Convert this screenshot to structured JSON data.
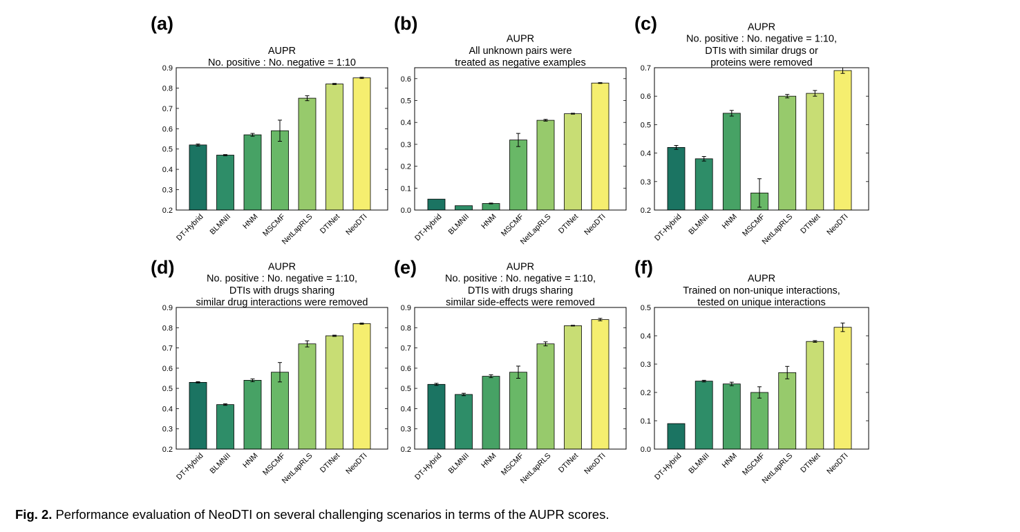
{
  "figure": {
    "caption_label": "Fig. 2.",
    "caption_text": "Performance evaluation of NeoDTI on several challenging scenarios in terms of the AUPR scores."
  },
  "style": {
    "background": "#ffffff",
    "axis_color": "#000000",
    "bar_edge_color": "#000000",
    "bar_colors": [
      "#1b7462",
      "#2e8d68",
      "#47a265",
      "#69b867",
      "#97ca6c",
      "#c8dd74",
      "#f5ee6f"
    ]
  },
  "chart_data": [
    {
      "panel_label": "(a)",
      "type": "bar",
      "title": [
        "AUPR",
        "No. positive : No. negative = 1:10"
      ],
      "xlabel": "",
      "ylabel": "",
      "categories": [
        "DT-Hybrid",
        "BLMNII",
        "HNM",
        "MSCMF",
        "NetLapRLS",
        "DTINet",
        "NeoDTI"
      ],
      "values": [
        0.52,
        0.47,
        0.57,
        0.59,
        0.75,
        0.82,
        0.85
      ],
      "errors": [
        0.005,
        0.003,
        0.007,
        0.052,
        0.012,
        0.003,
        0.003
      ],
      "ylim": [
        0.2,
        0.9
      ],
      "ytick_labels": [
        "0.2",
        "0.3",
        "0.4",
        "0.5",
        "0.6",
        "0.7",
        "0.8",
        "0.9"
      ],
      "grid": false
    },
    {
      "panel_label": "(b)",
      "type": "bar",
      "title": [
        "AUPR",
        "All unknown pairs were",
        "treated as negative examples"
      ],
      "xlabel": "",
      "ylabel": "",
      "categories": [
        "DT-Hybrid",
        "BLMNII",
        "HNM",
        "MSCMF",
        "NetLapRLS",
        "DTINet",
        "NeoDTI"
      ],
      "values": [
        0.05,
        0.02,
        0.03,
        0.32,
        0.41,
        0.44,
        0.58
      ],
      "errors": [
        0.0,
        0.001,
        0.002,
        0.03,
        0.004,
        0.002,
        0.002
      ],
      "ylim": [
        0.0,
        0.65
      ],
      "ytick_labels": [
        "0.0",
        "0.1",
        "0.2",
        "0.3",
        "0.4",
        "0.5",
        "0.6"
      ],
      "grid": false
    },
    {
      "panel_label": "(c)",
      "type": "bar",
      "title": [
        "AUPR",
        "No. positive : No. negative = 1:10,",
        "DTIs with similar drugs or",
        "proteins were removed"
      ],
      "xlabel": "",
      "ylabel": "",
      "categories": [
        "DT-Hybrid",
        "BLMNII",
        "HNM",
        "MSCMF",
        "NetLapRLS",
        "DTINet",
        "NeoDTI"
      ],
      "values": [
        0.42,
        0.38,
        0.54,
        0.26,
        0.6,
        0.61,
        0.69
      ],
      "errors": [
        0.007,
        0.008,
        0.01,
        0.05,
        0.006,
        0.01,
        0.01
      ],
      "ylim": [
        0.2,
        0.7
      ],
      "ytick_labels": [
        "0.2",
        "0.3",
        "0.4",
        "0.5",
        "0.6",
        "0.7"
      ],
      "grid": false
    },
    {
      "panel_label": "(d)",
      "type": "bar",
      "title": [
        "AUPR",
        "No. positive : No. negative = 1:10,",
        "DTIs with drugs sharing",
        "similar drug interactions were removed"
      ],
      "xlabel": "",
      "ylabel": "",
      "categories": [
        "DT-Hybrid",
        "BLMNII",
        "HNM",
        "MSCMF",
        "NetLapRLS",
        "DTINet",
        "NeoDTI"
      ],
      "values": [
        0.53,
        0.42,
        0.54,
        0.58,
        0.72,
        0.76,
        0.82
      ],
      "errors": [
        0.003,
        0.004,
        0.007,
        0.048,
        0.015,
        0.003,
        0.003
      ],
      "ylim": [
        0.2,
        0.9
      ],
      "ytick_labels": [
        "0.2",
        "0.3",
        "0.4",
        "0.5",
        "0.6",
        "0.7",
        "0.8",
        "0.9"
      ],
      "grid": false
    },
    {
      "panel_label": "(e)",
      "type": "bar",
      "title": [
        "AUPR",
        "No. positive : No. negative = 1:10,",
        "DTIs with drugs sharing",
        "similar side-effects were removed"
      ],
      "xlabel": "",
      "ylabel": "",
      "categories": [
        "DT-Hybrid",
        "BLMNII",
        "HNM",
        "MSCMF",
        "NetLapRLS",
        "DTINet",
        "NeoDTI"
      ],
      "values": [
        0.52,
        0.47,
        0.56,
        0.58,
        0.72,
        0.81,
        0.84
      ],
      "errors": [
        0.005,
        0.006,
        0.007,
        0.03,
        0.01,
        0.002,
        0.006
      ],
      "ylim": [
        0.2,
        0.9
      ],
      "ytick_labels": [
        "0.2",
        "0.3",
        "0.4",
        "0.5",
        "0.6",
        "0.7",
        "0.8",
        "0.9"
      ],
      "grid": false
    },
    {
      "panel_label": "(f)",
      "type": "bar",
      "title": [
        "AUPR",
        "Trained on non-unique interactions,",
        "tested on unique interactions"
      ],
      "xlabel": "",
      "ylabel": "",
      "categories": [
        "DT-Hybrid",
        "BLMNII",
        "HNM",
        "MSCMF",
        "NetLapRLS",
        "DTINet",
        "NeoDTI"
      ],
      "values": [
        0.09,
        0.24,
        0.23,
        0.2,
        0.27,
        0.38,
        0.43
      ],
      "errors": [
        0.0,
        0.003,
        0.006,
        0.02,
        0.022,
        0.003,
        0.015
      ],
      "ylim": [
        0.0,
        0.5
      ],
      "ytick_labels": [
        "0.0",
        "0.1",
        "0.2",
        "0.3",
        "0.4",
        "0.5"
      ],
      "grid": false
    }
  ]
}
